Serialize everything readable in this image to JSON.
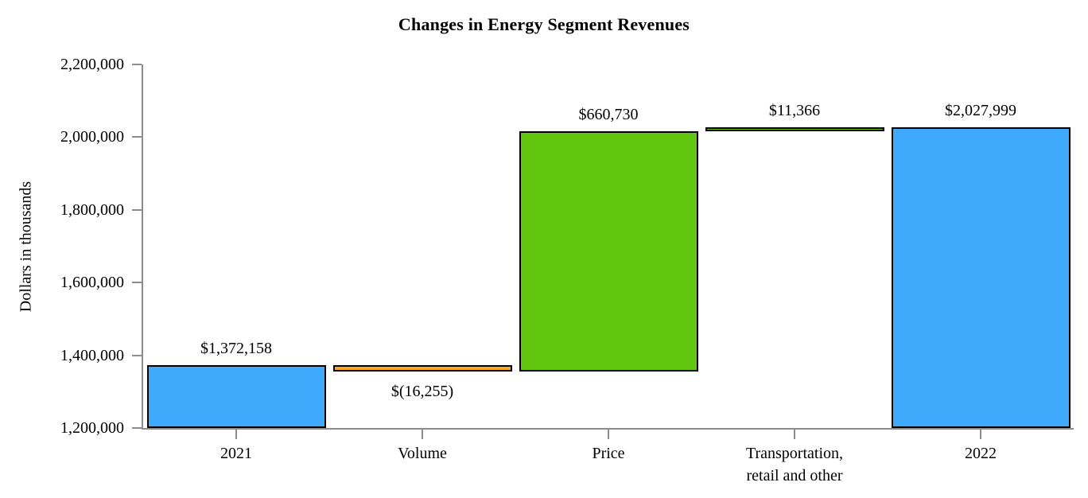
{
  "chart_data": {
    "type": "bar",
    "subtype": "waterfall",
    "title": "Changes in Energy Segment Revenues",
    "xlabel": "",
    "ylabel": "Dollars in thousands",
    "ylim": [
      1200000,
      2200000
    ],
    "ytick_interval": 200000,
    "yticks": [
      {
        "value": 1200000,
        "label": "1,200,000"
      },
      {
        "value": 1400000,
        "label": "1,400,000"
      },
      {
        "value": 1600000,
        "label": "1,600,000"
      },
      {
        "value": 1800000,
        "label": "1,800,000"
      },
      {
        "value": 2000000,
        "label": "2,000,000"
      },
      {
        "value": 2200000,
        "label": "2,200,000"
      }
    ],
    "grid": false,
    "legend": false,
    "background_color": "#ffffff",
    "axis_color": "#8c8c8c",
    "bar_border_color": "#000000",
    "text_color": "#000000",
    "colors": {
      "total": "#3faafb",
      "increase": "#63c70f",
      "decrease": "#f8a623"
    },
    "bars": [
      {
        "id": "2021",
        "category_lines": [
          "2021"
        ],
        "role": "total",
        "from": 1200000,
        "to": 1372158,
        "value": 1372158,
        "value_label": "$1,372,158",
        "label_position": "above",
        "color": "#3faafb"
      },
      {
        "id": "volume",
        "category_lines": [
          "Volume"
        ],
        "role": "decrease",
        "from": 1355903,
        "to": 1372158,
        "value": -16255,
        "value_label": "$(16,255)",
        "label_position": "below",
        "color": "#f8a623"
      },
      {
        "id": "price",
        "category_lines": [
          "Price"
        ],
        "role": "increase",
        "from": 1355903,
        "to": 2016633,
        "value": 660730,
        "value_label": "$660,730",
        "label_position": "above",
        "color": "#63c70f"
      },
      {
        "id": "transportation-retail-and-other",
        "category_lines": [
          "Transportation,",
          "retail and other"
        ],
        "role": "increase",
        "from": 2016633,
        "to": 2027999,
        "value": 11366,
        "value_label": "$11,366",
        "label_position": "above",
        "color": "#63c70f"
      },
      {
        "id": "2022",
        "category_lines": [
          "2022"
        ],
        "role": "total",
        "from": 1200000,
        "to": 2027999,
        "value": 2027999,
        "value_label": "$2,027,999",
        "label_position": "above",
        "color": "#3faafb"
      }
    ]
  }
}
